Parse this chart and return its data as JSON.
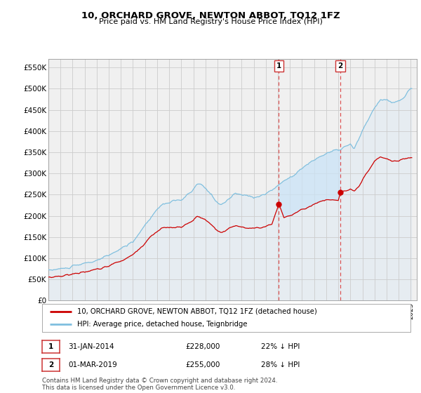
{
  "title": "10, ORCHARD GROVE, NEWTON ABBOT, TQ12 1FZ",
  "subtitle": "Price paid vs. HM Land Registry's House Price Index (HPI)",
  "ylim": [
    0,
    570000
  ],
  "yticks": [
    0,
    50000,
    100000,
    150000,
    200000,
    250000,
    300000,
    350000,
    400000,
    450000,
    500000,
    550000
  ],
  "ytick_labels": [
    "£0",
    "£50K",
    "£100K",
    "£150K",
    "£200K",
    "£250K",
    "£300K",
    "£350K",
    "£400K",
    "£450K",
    "£500K",
    "£550K"
  ],
  "hpi_color": "#7fbfdf",
  "price_color": "#cc0000",
  "vline_color": "#dd4444",
  "grid_color": "#cccccc",
  "background_color": "#ffffff",
  "plot_bg_color": "#f0f0f0",
  "shade_color": "#cce4f7",
  "legend_label_price": "10, ORCHARD GROVE, NEWTON ABBOT, TQ12 1FZ (detached house)",
  "legend_label_hpi": "HPI: Average price, detached house, Teignbridge",
  "sale1_date": "31-JAN-2014",
  "sale1_price": "£228,000",
  "sale1_pct": "22% ↓ HPI",
  "sale1_label": "1",
  "sale2_date": "01-MAR-2019",
  "sale2_price": "£255,000",
  "sale2_pct": "28% ↓ HPI",
  "sale2_label": "2",
  "footnote": "Contains HM Land Registry data © Crown copyright and database right 2024.\nThis data is licensed under the Open Government Licence v3.0.",
  "sale1_x": 2014.083,
  "sale1_y": 228000,
  "sale2_x": 2019.167,
  "sale2_y": 255000,
  "vline1_x": 2014.083,
  "vline2_x": 2019.167,
  "xmin": 1995.0,
  "xmax": 2025.5
}
